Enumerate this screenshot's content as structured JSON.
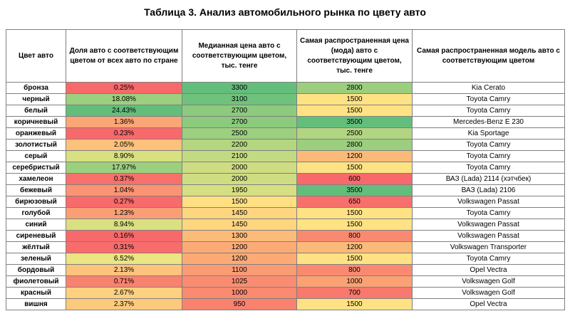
{
  "title": "Таблица 3. Анализ автомобильного рынка по цвету авто",
  "headers": [
    "Цвет авто",
    "Доля авто с соответствующим цветом от всех авто по стране",
    "Медианная цена авто с соответствующим цветом, тыс. тенге",
    "Самая распространенная цена (мода) авто с соответствующим цветом, тыс. тенге",
    "Самая распространенная модель авто с соответствующим цветом"
  ],
  "rows": [
    {
      "color": "бронза",
      "share": "0.25%",
      "share_bg": "#f8696b",
      "median": "3300",
      "median_bg": "#63be7b",
      "mode": "2800",
      "mode_bg": "#9bcf7e",
      "model": "Kia Cerato"
    },
    {
      "color": "черный",
      "share": "18.08%",
      "share_bg": "#9ccf7e",
      "median": "3100",
      "median_bg": "#6fc27c",
      "mode": "1500",
      "mode_bg": "#ffe283",
      "model": "Toyota Camry"
    },
    {
      "color": "белый",
      "share": "24.43%",
      "share_bg": "#63be7b",
      "median": "2700",
      "median_bg": "#8ccb7e",
      "mode": "1500",
      "mode_bg": "#ffe283",
      "model": "Toyota Camry"
    },
    {
      "color": "коричневый",
      "share": "1.36%",
      "share_bg": "#fba676",
      "median": "2700",
      "median_bg": "#8ccb7e",
      "mode": "3500",
      "mode_bg": "#63be7b",
      "model": "Mercedes-Benz E 230"
    },
    {
      "color": "оранжевый",
      "share": "0.23%",
      "share_bg": "#f8696b",
      "median": "2500",
      "median_bg": "#9ccf7e",
      "mode": "2500",
      "mode_bg": "#b1d580",
      "model": "Kia Sportage"
    },
    {
      "color": "золотистый",
      "share": "2.05%",
      "share_bg": "#fcc17b",
      "median": "2200",
      "median_bg": "#b5d680",
      "mode": "2800",
      "mode_bg": "#9bcf7e",
      "model": "Toyota Camry"
    },
    {
      "color": "серый",
      "share": "8.90%",
      "share_bg": "#d8e082",
      "median": "2100",
      "median_bg": "#c2da81",
      "mode": "1200",
      "mode_bg": "#fcba79",
      "model": "Toyota Camry"
    },
    {
      "color": "серебристый",
      "share": "17.97%",
      "share_bg": "#9ccf7e",
      "median": "2000",
      "median_bg": "#cfdd82",
      "mode": "1500",
      "mode_bg": "#ffe283",
      "model": "Toyota Camry"
    },
    {
      "color": "хамелеон",
      "share": "0.37%",
      "share_bg": "#f8706c",
      "median": "2000",
      "median_bg": "#cfdd82",
      "mode": "600",
      "mode_bg": "#f8696b",
      "model": "ВАЗ (Lada) 2114 (хэтчбек)"
    },
    {
      "color": "бежевый",
      "share": "1.04%",
      "share_bg": "#fa9473",
      "median": "1950",
      "median_bg": "#d6df82",
      "mode": "3500",
      "mode_bg": "#63be7b",
      "model": "ВАЗ (Lada) 2106"
    },
    {
      "color": "бирюзовый",
      "share": "0.27%",
      "share_bg": "#f86a6b",
      "median": "1500",
      "median_bg": "#fee082",
      "mode": "650",
      "mode_bg": "#f8706c",
      "model": "Volkswagen Passat"
    },
    {
      "color": "голубой",
      "share": "1.23%",
      "share_bg": "#fa9e75",
      "median": "1450",
      "median_bg": "#fed680",
      "mode": "1500",
      "mode_bg": "#ffe283",
      "model": "Toyota Camry"
    },
    {
      "color": "синий",
      "share": "8.94%",
      "share_bg": "#d8e082",
      "median": "1450",
      "median_bg": "#fed680",
      "mode": "1500",
      "mode_bg": "#ffe283",
      "model": "Volkswagen Passat"
    },
    {
      "color": "сиреневый",
      "share": "0.16%",
      "share_bg": "#f8696b",
      "median": "1300",
      "median_bg": "#fdbb7a",
      "mode": "800",
      "mode_bg": "#f98a71",
      "model": "Volkswagen Passat"
    },
    {
      "color": "жёлтый",
      "share": "0.31%",
      "share_bg": "#f86c6b",
      "median": "1200",
      "median_bg": "#fcab77",
      "mode": "1200",
      "mode_bg": "#fcba79",
      "model": "Volkswagen Transporter"
    },
    {
      "color": "зеленый",
      "share": "6.52%",
      "share_bg": "#ece583",
      "median": "1200",
      "median_bg": "#fcab77",
      "mode": "1500",
      "mode_bg": "#ffe283",
      "model": "Toyota Camry"
    },
    {
      "color": "бордовый",
      "share": "2.13%",
      "share_bg": "#fcc47c",
      "median": "1100",
      "median_bg": "#fb9b74",
      "mode": "800",
      "mode_bg": "#f98a71",
      "model": "Opel Vectra"
    },
    {
      "color": "фиолетовый",
      "share": "0.71%",
      "share_bg": "#f9826f",
      "median": "1025",
      "median_bg": "#fa8d71",
      "mode": "1000",
      "mode_bg": "#fba174",
      "model": "Volkswagen Golf"
    },
    {
      "color": "красный",
      "share": "2.67%",
      "share_bg": "#fdd17f",
      "median": "1000",
      "median_bg": "#fa8a70",
      "mode": "700",
      "mode_bg": "#f8796d",
      "model": "Volkswagen Golf"
    },
    {
      "color": "вишня",
      "share": "2.37%",
      "share_bg": "#fdca7d",
      "median": "950",
      "median_bg": "#f9826f",
      "mode": "1500",
      "mode_bg": "#ffe283",
      "model": "Opel Vectra"
    }
  ]
}
